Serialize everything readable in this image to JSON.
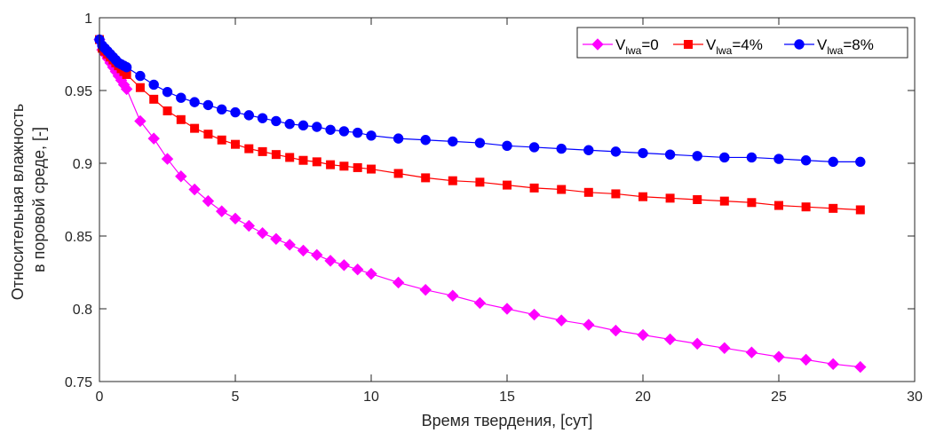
{
  "chart_data": {
    "type": "line",
    "xlabel": "Время твердения, [сут]",
    "ylabel_lines": [
      "Относительная влажность",
      "в поровой среде, [-]"
    ],
    "xlim": [
      0,
      30
    ],
    "ylim": [
      0.75,
      1
    ],
    "x_ticks": [
      0,
      5,
      10,
      15,
      20,
      25,
      30
    ],
    "x_tick_labels": [
      "0",
      "5",
      "10",
      "15",
      "20",
      "25",
      "30"
    ],
    "y_ticks": [
      0.75,
      0.8,
      0.85,
      0.9,
      0.95,
      1
    ],
    "y_tick_labels": [
      "0.75",
      "0.8",
      "0.85",
      "0.9",
      "0.95",
      "1"
    ],
    "grid": false,
    "legend_position": "top-right",
    "legend_orientation": "horizontal",
    "x": [
      0,
      0.1,
      0.2,
      0.3,
      0.4,
      0.5,
      0.6,
      0.7,
      0.8,
      0.9,
      1,
      1.5,
      2,
      2.5,
      3,
      3.5,
      4,
      4.5,
      5,
      5.5,
      6,
      6.5,
      7,
      7.5,
      8,
      8.5,
      9,
      9.5,
      10,
      11,
      12,
      13,
      14,
      15,
      16,
      17,
      18,
      19,
      20,
      21,
      22,
      23,
      24,
      25,
      26,
      27,
      28
    ],
    "series": [
      {
        "label_main": "V",
        "label_sub": "lwa",
        "label_suffix": "=0",
        "color": "#ff00ff",
        "marker": "diamond",
        "values": [
          0.985,
          0.978,
          0.975,
          0.972,
          0.969,
          0.966,
          0.963,
          0.96,
          0.957,
          0.954,
          0.951,
          0.929,
          0.917,
          0.903,
          0.891,
          0.882,
          0.874,
          0.867,
          0.862,
          0.857,
          0.852,
          0.848,
          0.844,
          0.84,
          0.837,
          0.833,
          0.83,
          0.827,
          0.824,
          0.818,
          0.813,
          0.809,
          0.804,
          0.8,
          0.796,
          0.792,
          0.789,
          0.785,
          0.782,
          0.779,
          0.776,
          0.773,
          0.77,
          0.767,
          0.765,
          0.762,
          0.76
        ]
      },
      {
        "label_main": "V",
        "label_sub": "lwa",
        "label_suffix": "=4%",
        "color": "#ff0000",
        "marker": "square",
        "values": [
          0.985,
          0.979,
          0.977,
          0.975,
          0.973,
          0.971,
          0.969,
          0.967,
          0.965,
          0.963,
          0.961,
          0.952,
          0.944,
          0.936,
          0.93,
          0.924,
          0.92,
          0.916,
          0.913,
          0.91,
          0.908,
          0.906,
          0.904,
          0.902,
          0.901,
          0.899,
          0.898,
          0.897,
          0.896,
          0.893,
          0.89,
          0.888,
          0.887,
          0.885,
          0.883,
          0.882,
          0.88,
          0.879,
          0.877,
          0.876,
          0.875,
          0.874,
          0.873,
          0.871,
          0.87,
          0.869,
          0.868
        ]
      },
      {
        "label_main": "V",
        "label_sub": "lwa",
        "label_suffix": "=8%",
        "color": "#0000ff",
        "marker": "circle",
        "values": [
          0.985,
          0.981,
          0.979,
          0.977,
          0.975,
          0.973,
          0.971,
          0.969,
          0.968,
          0.967,
          0.966,
          0.96,
          0.954,
          0.949,
          0.945,
          0.942,
          0.94,
          0.937,
          0.935,
          0.933,
          0.931,
          0.929,
          0.927,
          0.926,
          0.925,
          0.923,
          0.922,
          0.921,
          0.919,
          0.917,
          0.916,
          0.915,
          0.914,
          0.912,
          0.911,
          0.91,
          0.909,
          0.908,
          0.907,
          0.906,
          0.905,
          0.904,
          0.904,
          0.903,
          0.902,
          0.901,
          0.901
        ]
      }
    ]
  }
}
